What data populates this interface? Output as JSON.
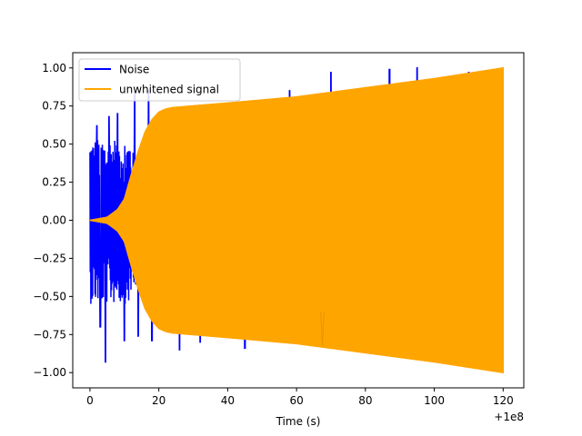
{
  "chart_data": {
    "type": "line",
    "title": "",
    "xlabel": "Time (s)",
    "ylabel": "",
    "x_offset_label": "+1e8",
    "xlim": [
      -5,
      126
    ],
    "ylim": [
      -1.1,
      1.1
    ],
    "x_ticks": [
      0,
      20,
      40,
      60,
      80,
      100,
      120
    ],
    "x_tick_labels": [
      "0",
      "20",
      "40",
      "60",
      "80",
      "100",
      "120"
    ],
    "y_ticks": [
      -1.0,
      -0.75,
      -0.5,
      -0.25,
      0.0,
      0.25,
      0.5,
      0.75,
      1.0
    ],
    "y_tick_labels": [
      "−1.00",
      "−0.75",
      "−0.50",
      "−0.25",
      "0.00",
      "0.25",
      "0.50",
      "0.75",
      "1.00"
    ],
    "grid": false,
    "legend_position": "top-left",
    "series": [
      {
        "name": "Noise",
        "color": "#0000ff",
        "x_range": [
          0,
          120
        ],
        "spikes": [
          {
            "x": 1,
            "y": 0.47
          },
          {
            "x": 2,
            "y": 0.62
          },
          {
            "x": 3,
            "y": -0.7
          },
          {
            "x": 4.5,
            "y": -0.93
          },
          {
            "x": 5.5,
            "y": 0.68
          },
          {
            "x": 8,
            "y": 0.7
          },
          {
            "x": 10,
            "y": -0.79
          },
          {
            "x": 13,
            "y": 0.83
          },
          {
            "x": 14,
            "y": -0.76
          },
          {
            "x": 17,
            "y": 0.85
          },
          {
            "x": 18,
            "y": -0.79
          },
          {
            "x": 26,
            "y": -0.85
          },
          {
            "x": 32,
            "y": -0.8
          },
          {
            "x": 45,
            "y": -0.84
          },
          {
            "x": 58,
            "y": 0.85
          },
          {
            "x": 70,
            "y": 0.97
          },
          {
            "x": 87,
            "y": 0.99
          },
          {
            "x": 95,
            "y": 1.0
          },
          {
            "x": 110,
            "y": 0.97
          }
        ]
      },
      {
        "name": "unwhitened signal",
        "color": "#ffa500",
        "x_range": [
          0,
          120
        ],
        "envelope": [
          {
            "x": 0,
            "y": 0.0
          },
          {
            "x": 5,
            "y": 0.02
          },
          {
            "x": 8,
            "y": 0.07
          },
          {
            "x": 10,
            "y": 0.14
          },
          {
            "x": 12,
            "y": 0.3
          },
          {
            "x": 14,
            "y": 0.45
          },
          {
            "x": 16,
            "y": 0.58
          },
          {
            "x": 18,
            "y": 0.66
          },
          {
            "x": 20,
            "y": 0.71
          },
          {
            "x": 22,
            "y": 0.73
          },
          {
            "x": 24,
            "y": 0.74
          },
          {
            "x": 40,
            "y": 0.77
          },
          {
            "x": 60,
            "y": 0.81
          },
          {
            "x": 80,
            "y": 0.87
          },
          {
            "x": 100,
            "y": 0.93
          },
          {
            "x": 120,
            "y": 1.0
          }
        ]
      }
    ]
  }
}
